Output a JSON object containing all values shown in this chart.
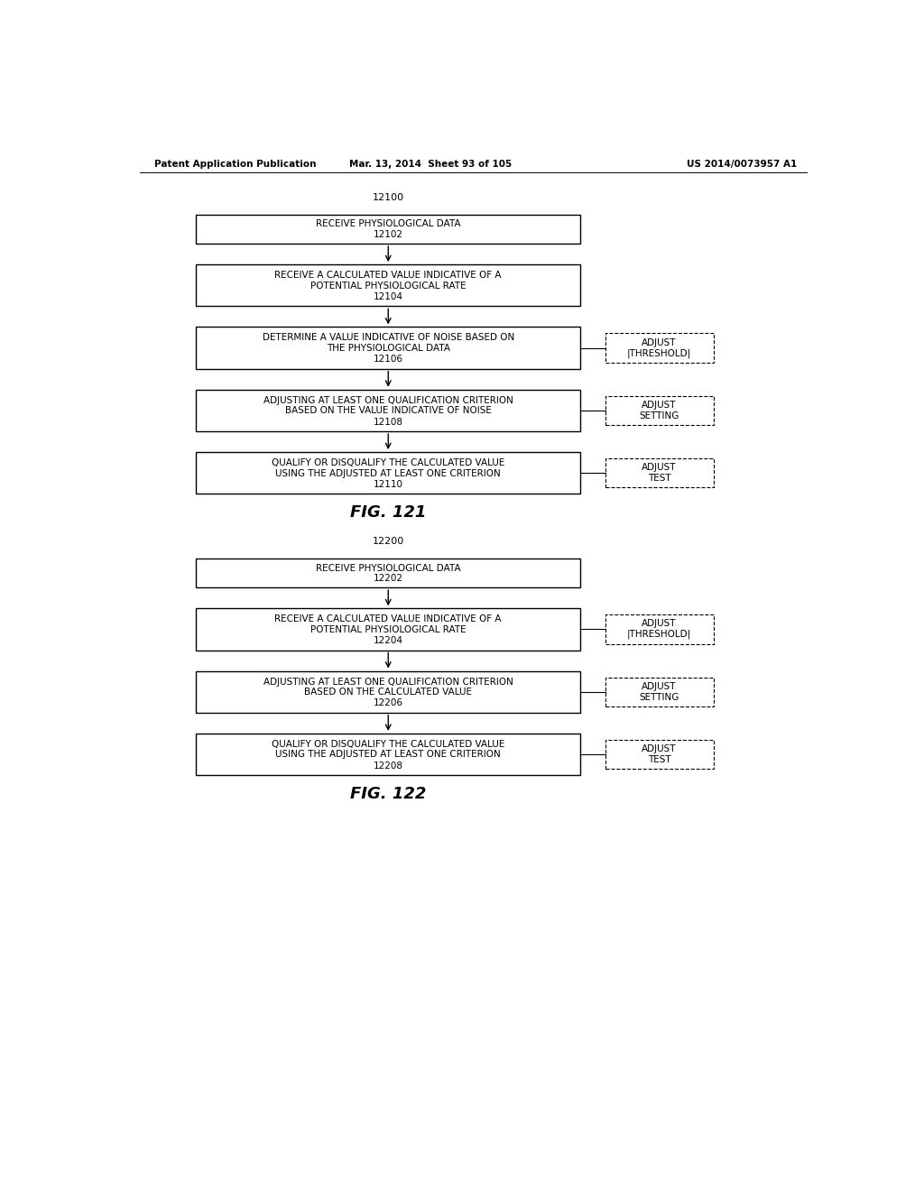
{
  "background_color": "#ffffff",
  "header_left": "Patent Application Publication",
  "header_mid": "Mar. 13, 2014  Sheet 93 of 105",
  "header_right": "US 2014/0073957 A1",
  "fig1_label": "12100",
  "fig1_caption": "FIG. 121",
  "fig2_label": "12200",
  "fig2_caption": "FIG. 122",
  "fig1_boxes": [
    {
      "label": "12102",
      "text": "RECEIVE PHYSIOLOGICAL DATA"
    },
    {
      "label": "12104",
      "text": "RECEIVE A CALCULATED VALUE INDICATIVE OF A\nPOTENTIAL PHYSIOLOGICAL RATE"
    },
    {
      "label": "12106",
      "text": "DETERMINE A VALUE INDICATIVE OF NOISE BASED ON\nTHE PHYSIOLOGICAL DATA"
    },
    {
      "label": "12108",
      "text": "ADJUSTING AT LEAST ONE QUALIFICATION CRITERION\nBASED ON THE VALUE INDICATIVE OF NOISE"
    },
    {
      "label": "12110",
      "text": "QUALIFY OR DISQUALIFY THE CALCULATED VALUE\nUSING THE ADJUSTED AT LEAST ONE CRITERION"
    }
  ],
  "fig1_side_boxes": [
    {
      "text": "ADJUST\n|THRESHOLD|"
    },
    {
      "text": "ADJUST\nSETTING"
    },
    {
      "text": "ADJUST\nTEST"
    }
  ],
  "fig2_boxes": [
    {
      "label": "12202",
      "text": "RECEIVE PHYSIOLOGICAL DATA"
    },
    {
      "label": "12204",
      "text": "RECEIVE A CALCULATED VALUE INDICATIVE OF A\nPOTENTIAL PHYSIOLOGICAL RATE"
    },
    {
      "label": "12206",
      "text": "ADJUSTING AT LEAST ONE QUALIFICATION CRITERION\nBASED ON THE CALCULATED VALUE"
    },
    {
      "label": "12208",
      "text": "QUALIFY OR DISQUALIFY THE CALCULATED VALUE\nUSING THE ADJUSTED AT LEAST ONE CRITERION"
    }
  ],
  "fig2_side_boxes": [
    {
      "text": "ADJUST\n|THRESHOLD|"
    },
    {
      "text": "ADJUST\nSETTING"
    },
    {
      "text": "ADJUST\nTEST"
    }
  ]
}
